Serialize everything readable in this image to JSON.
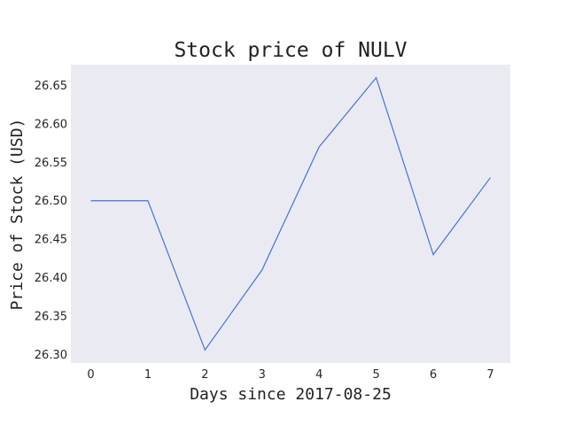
{
  "chart_data": {
    "type": "line",
    "title": "Stock price of NULV",
    "xlabel": "Days since 2017-08-25",
    "ylabel": "Price of Stock (USD)",
    "x": [
      0,
      1,
      2,
      3,
      4,
      5,
      6,
      7
    ],
    "series": [
      {
        "values": [
          26.5,
          26.5,
          26.306,
          26.41,
          26.57,
          26.66,
          26.43,
          26.53
        ]
      }
    ],
    "xticks": [
      0,
      1,
      2,
      3,
      4,
      5,
      6,
      7
    ],
    "yticks": [
      "26.30",
      "26.35",
      "26.40",
      "26.45",
      "26.50",
      "26.55",
      "26.60",
      "26.65"
    ],
    "xlim": [
      -0.35,
      7.35
    ],
    "ylim": [
      26.289,
      26.677
    ],
    "grid": false,
    "colors": {
      "plot_background": "#eaeaf2",
      "line": "#4c72d0"
    }
  }
}
